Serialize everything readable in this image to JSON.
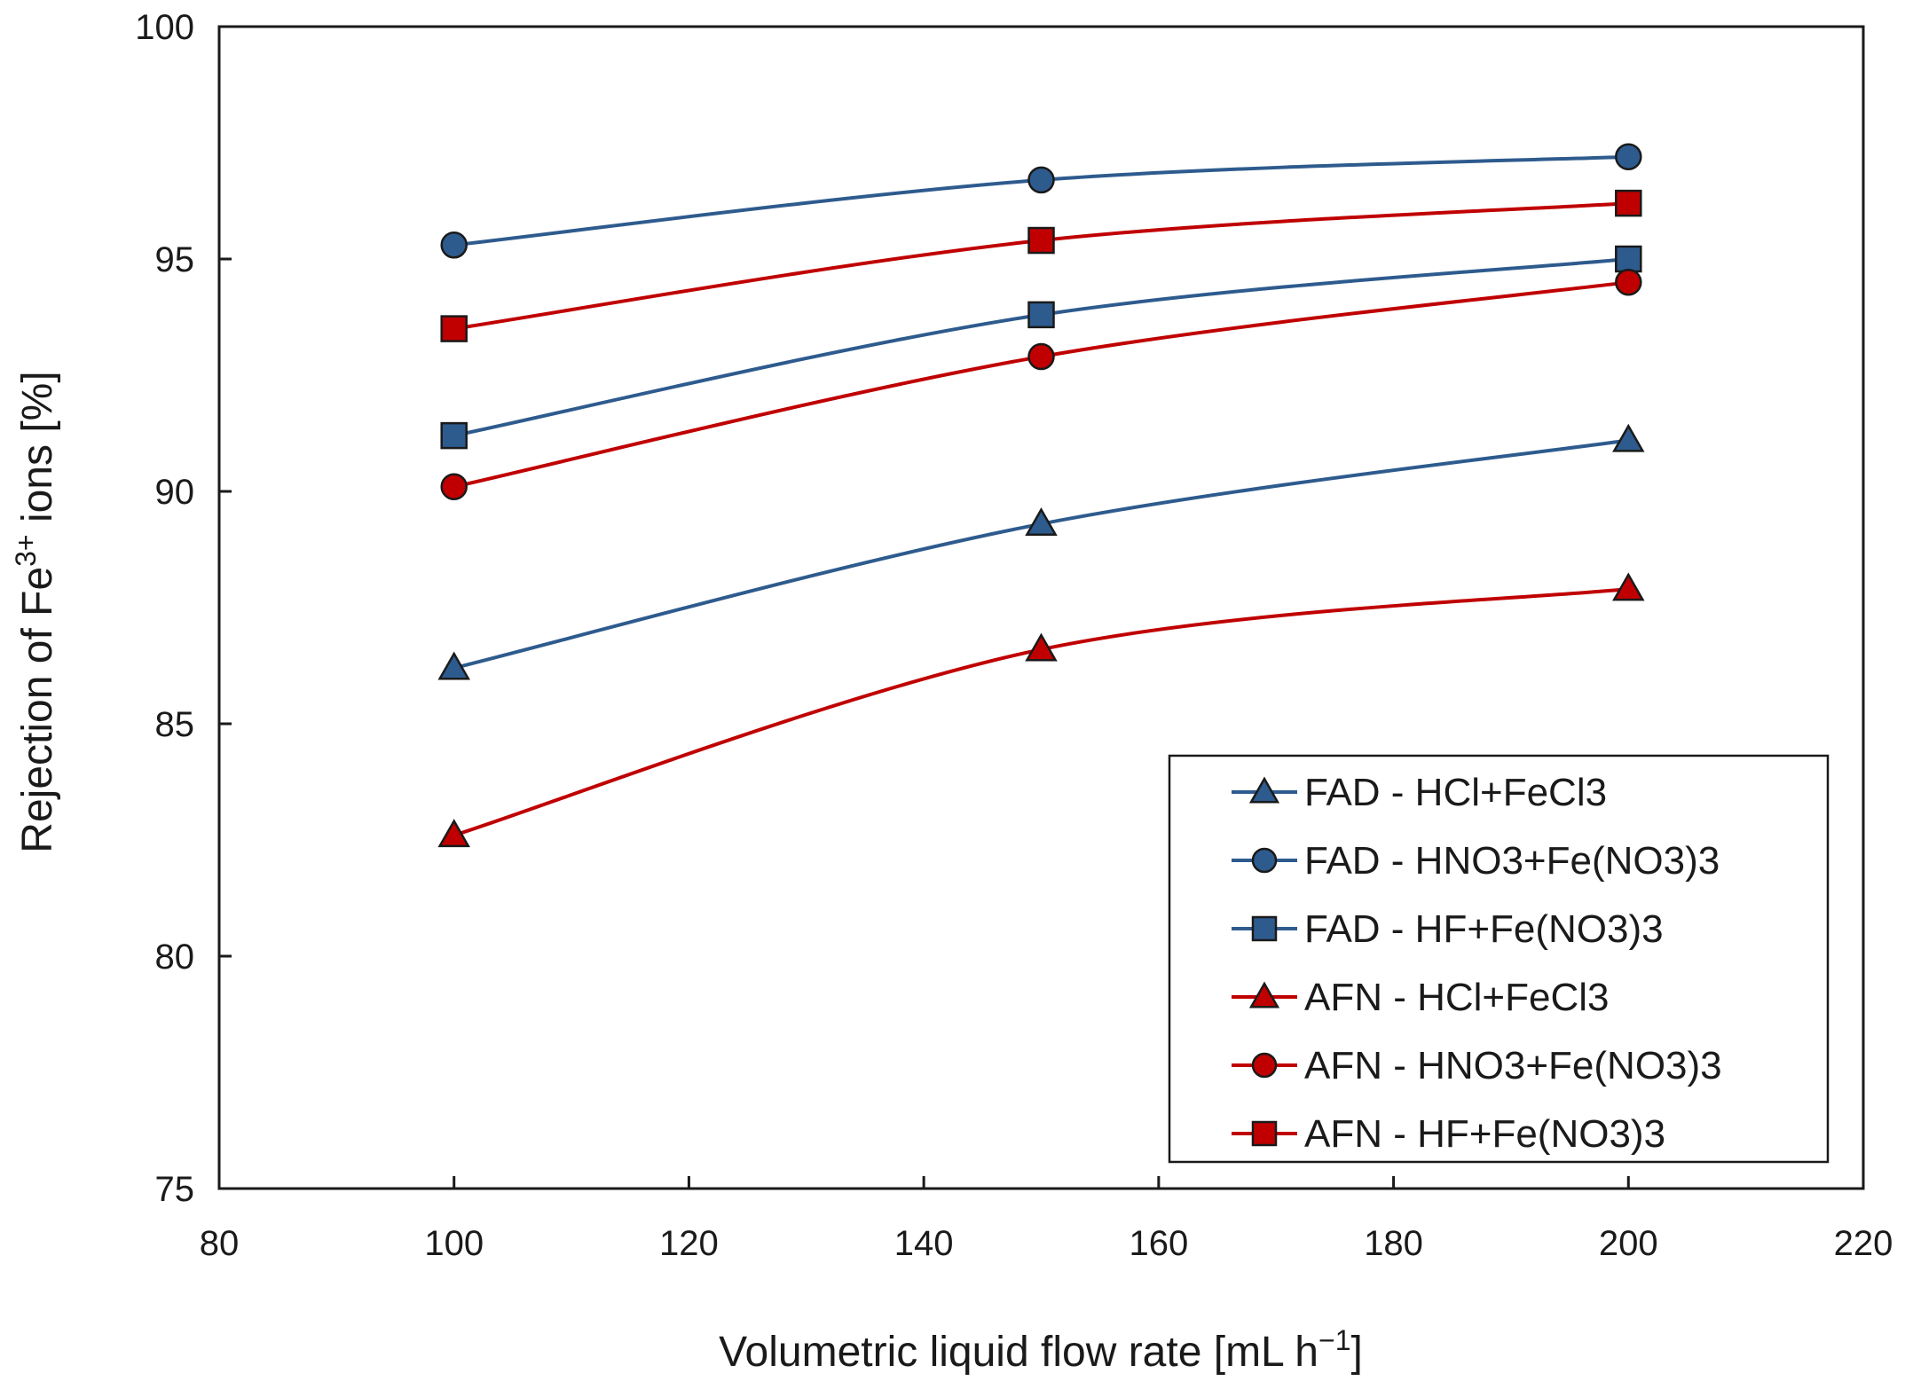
{
  "chart_data": {
    "type": "line",
    "title": "",
    "xlabel": {
      "text": "Volumetric liquid flow rate [mL h",
      "sup": "−1",
      "suffix": "]"
    },
    "ylabel": {
      "text": "Rejection of Fe",
      "sup": "3+",
      "suffix": " ions [%]"
    },
    "xlim": [
      80,
      220
    ],
    "ylim": [
      75,
      100
    ],
    "xticks": [
      80,
      100,
      120,
      140,
      160,
      180,
      200,
      220
    ],
    "yticks": [
      75,
      80,
      85,
      90,
      95,
      100
    ],
    "grid": false,
    "legend_position": "bottom-right",
    "series": [
      {
        "name": "FAD - HCl+FeCl3",
        "color": "#2e5b8e",
        "marker": "triangle",
        "x": [
          100,
          150,
          200
        ],
        "y": [
          86.2,
          89.3,
          91.1
        ]
      },
      {
        "name": "FAD - HNO3+Fe(NO3)3",
        "color": "#2e5b8e",
        "marker": "circle",
        "x": [
          100,
          150,
          200
        ],
        "y": [
          95.3,
          96.7,
          97.2
        ]
      },
      {
        "name": "FAD - HF+Fe(NO3)3",
        "color": "#2e5b8e",
        "marker": "square",
        "x": [
          100,
          150,
          200
        ],
        "y": [
          91.2,
          93.8,
          95.0
        ]
      },
      {
        "name": "AFN - HCl+FeCl3",
        "color": "#c00000",
        "marker": "triangle",
        "x": [
          100,
          150,
          200
        ],
        "y": [
          82.6,
          86.6,
          87.9
        ]
      },
      {
        "name": "AFN - HNO3+Fe(NO3)3",
        "color": "#c00000",
        "marker": "circle",
        "x": [
          100,
          150,
          200
        ],
        "y": [
          90.1,
          92.9,
          94.5
        ]
      },
      {
        "name": "AFN - HF+Fe(NO3)3",
        "color": "#c00000",
        "marker": "square",
        "x": [
          100,
          150,
          200
        ],
        "y": [
          93.5,
          95.4,
          96.2
        ]
      }
    ]
  }
}
